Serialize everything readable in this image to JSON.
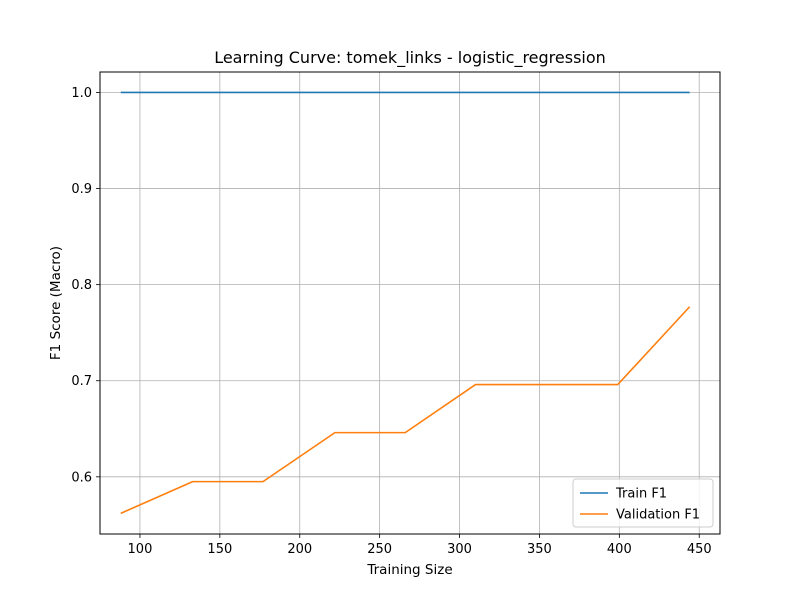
{
  "chart_data": {
    "type": "line",
    "title": "Learning Curve: tomek_links - logistic_regression",
    "xlabel": "Training Size",
    "ylabel": "F1 Score (Macro)",
    "xlim": [
      75,
      463
    ],
    "ylim": [
      0.5405,
      1.0213
    ],
    "xticks": [
      100,
      150,
      200,
      250,
      300,
      350,
      400,
      450
    ],
    "yticks": [
      0.6,
      0.7,
      0.8,
      0.9,
      1.0
    ],
    "xtick_labels": [
      "100",
      "150",
      "200",
      "250",
      "300",
      "350",
      "400",
      "450"
    ],
    "ytick_labels": [
      "0.6",
      "0.7",
      "0.8",
      "0.9",
      "1.0"
    ],
    "grid": true,
    "legend_position": "lower right",
    "x": [
      88,
      133,
      177,
      222,
      266,
      310,
      355,
      399,
      444
    ],
    "series": [
      {
        "name": "Train F1",
        "color": "#1f77b4",
        "values": [
          1.0,
          1.0,
          1.0,
          1.0,
          1.0,
          1.0,
          1.0,
          1.0,
          1.0
        ]
      },
      {
        "name": "Validation F1",
        "color": "#ff7f0e",
        "values": [
          0.562,
          0.595,
          0.595,
          0.646,
          0.646,
          0.696,
          0.696,
          0.696,
          0.777
        ]
      }
    ]
  }
}
